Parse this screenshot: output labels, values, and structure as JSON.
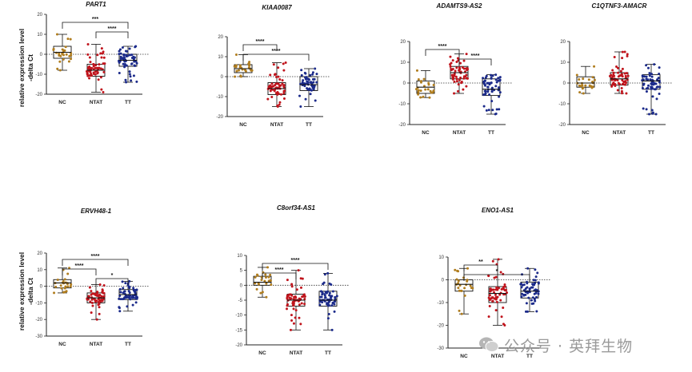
{
  "colors": {
    "NC": "#b07d1e",
    "NTAT": "#c0141c",
    "TT": "#1b2a8a",
    "axis": "#222222"
  },
  "y_axis_label_line1": "relative expression level",
  "y_axis_label_line2": "-delta Ct",
  "watermark": "公众号 · 英拜生物",
  "chart_data": [
    {
      "type": "box",
      "title": "PART1",
      "ylim": [
        -20,
        20
      ],
      "yticks": [
        -20,
        -10,
        0,
        10,
        20
      ],
      "categories": [
        "NC",
        "NTAT",
        "TT"
      ],
      "series": [
        {
          "name": "NC",
          "min": -8,
          "q1": -2,
          "median": 1,
          "q3": 4,
          "max": 10,
          "n": 26
        },
        {
          "name": "NTAT",
          "min": -19,
          "q1": -11,
          "median": -8,
          "q3": -5,
          "max": 5,
          "n": 60
        },
        {
          "name": "TT",
          "min": -14,
          "q1": -6,
          "median": -3,
          "q3": 0,
          "max": 4,
          "n": 60
        }
      ],
      "sig": [
        {
          "from": 0,
          "to": 2,
          "label": "***"
        },
        {
          "from": 1,
          "to": 2,
          "label": "****"
        }
      ]
    },
    {
      "type": "box",
      "title": "KIAA0087",
      "ylim": [
        -20,
        20
      ],
      "yticks": [
        -20,
        -10,
        0,
        10,
        20
      ],
      "categories": [
        "NC",
        "NTAT",
        "TT"
      ],
      "series": [
        {
          "name": "NC",
          "min": 0,
          "q1": 2,
          "median": 4,
          "q3": 6,
          "max": 11,
          "n": 24
        },
        {
          "name": "NTAT",
          "min": -15,
          "q1": -9,
          "median": -6,
          "q3": -3,
          "max": 7,
          "n": 60
        },
        {
          "name": "TT",
          "min": -15,
          "q1": -7,
          "median": -4,
          "q3": 0,
          "max": 4,
          "n": 60
        }
      ],
      "sig": [
        {
          "from": 0,
          "to": 1,
          "label": "****"
        },
        {
          "from": 0,
          "to": 2,
          "label": "****"
        }
      ]
    },
    {
      "type": "box",
      "title": "ADAMTS9-AS2",
      "ylim": [
        -20,
        20
      ],
      "yticks": [
        -20,
        -10,
        0,
        10,
        20
      ],
      "categories": [
        "NC",
        "NTAT",
        "TT"
      ],
      "series": [
        {
          "name": "NC",
          "min": -7,
          "q1": -5,
          "median": -2,
          "q3": 1,
          "max": 6,
          "n": 24
        },
        {
          "name": "NTAT",
          "min": -5,
          "q1": 2,
          "median": 5,
          "q3": 8,
          "max": 14,
          "n": 60
        },
        {
          "name": "TT",
          "min": -15,
          "q1": -6,
          "median": -3,
          "q3": 2,
          "max": 4,
          "n": 60
        }
      ],
      "sig": [
        {
          "from": 0,
          "to": 1,
          "label": "****"
        },
        {
          "from": 1,
          "to": 2,
          "label": "****"
        }
      ]
    },
    {
      "type": "box",
      "title": "C1QTNF3-AMACR",
      "ylim": [
        -20,
        20
      ],
      "yticks": [
        -20,
        -10,
        0,
        10,
        20
      ],
      "categories": [
        "NC",
        "NTAT",
        "TT"
      ],
      "series": [
        {
          "name": "NC",
          "min": -5,
          "q1": -2,
          "median": 0,
          "q3": 3,
          "max": 8,
          "n": 24
        },
        {
          "name": "NTAT",
          "min": -5,
          "q1": -1,
          "median": 2,
          "q3": 5,
          "max": 15,
          "n": 60
        },
        {
          "name": "TT",
          "min": -15,
          "q1": -3,
          "median": 1,
          "q3": 4,
          "max": 9,
          "n": 60
        }
      ],
      "sig": []
    },
    {
      "type": "box",
      "title": "ERVH48-1",
      "ylim": [
        -30,
        20
      ],
      "yticks": [
        -30,
        -20,
        -10,
        0,
        10,
        20
      ],
      "categories": [
        "NC",
        "NTAT",
        "TT"
      ],
      "series": [
        {
          "name": "NC",
          "min": -4,
          "q1": -1,
          "median": 2,
          "q3": 4,
          "max": 11,
          "n": 24
        },
        {
          "name": "NTAT",
          "min": -20,
          "q1": -10,
          "median": -7,
          "q3": -4,
          "max": 1,
          "n": 60
        },
        {
          "name": "TT",
          "min": -15,
          "q1": -8,
          "median": -5,
          "q3": -2,
          "max": 3,
          "n": 60
        }
      ],
      "sig": [
        {
          "from": 0,
          "to": 2,
          "label": "****"
        },
        {
          "from": 0,
          "to": 1,
          "label": "****"
        },
        {
          "from": 1,
          "to": 2,
          "label": "*"
        }
      ]
    },
    {
      "type": "box",
      "title": "C8orf34-AS1",
      "ylim": [
        -20,
        10
      ],
      "yticks": [
        -20,
        -15,
        -10,
        -5,
        0,
        5,
        10
      ],
      "categories": [
        "NC",
        "NTAT",
        "TT"
      ],
      "series": [
        {
          "name": "NC",
          "min": -4,
          "q1": 0,
          "median": 1,
          "q3": 3,
          "max": 6,
          "n": 24
        },
        {
          "name": "NTAT",
          "min": -15,
          "q1": -7,
          "median": -5,
          "q3": -3,
          "max": 5,
          "n": 60
        },
        {
          "name": "TT",
          "min": -15,
          "q1": -7,
          "median": -5,
          "q3": -2,
          "max": 4,
          "n": 60
        }
      ],
      "sig": [
        {
          "from": 0,
          "to": 2,
          "label": "****"
        },
        {
          "from": 0,
          "to": 1,
          "label": "****"
        }
      ]
    },
    {
      "type": "box",
      "title": "ENO1-AS1",
      "ylim": [
        -30,
        10
      ],
      "yticks": [
        -30,
        -20,
        -10,
        0,
        10
      ],
      "categories": [
        "NC",
        "NTAT",
        "TT"
      ],
      "series": [
        {
          "name": "NC",
          "min": -15,
          "q1": -5,
          "median": -2,
          "q3": 0,
          "max": 5,
          "n": 24
        },
        {
          "name": "NTAT",
          "min": -20,
          "q1": -10,
          "median": -6,
          "q3": -3,
          "max": 9,
          "n": 60
        },
        {
          "name": "TT",
          "min": -14,
          "q1": -8,
          "median": -5,
          "q3": -1,
          "max": 5,
          "n": 60
        }
      ],
      "sig": [
        {
          "from": 0,
          "to": 1,
          "label": "**"
        },
        {
          "from": 0,
          "to": 2,
          "label": "*"
        }
      ]
    }
  ]
}
